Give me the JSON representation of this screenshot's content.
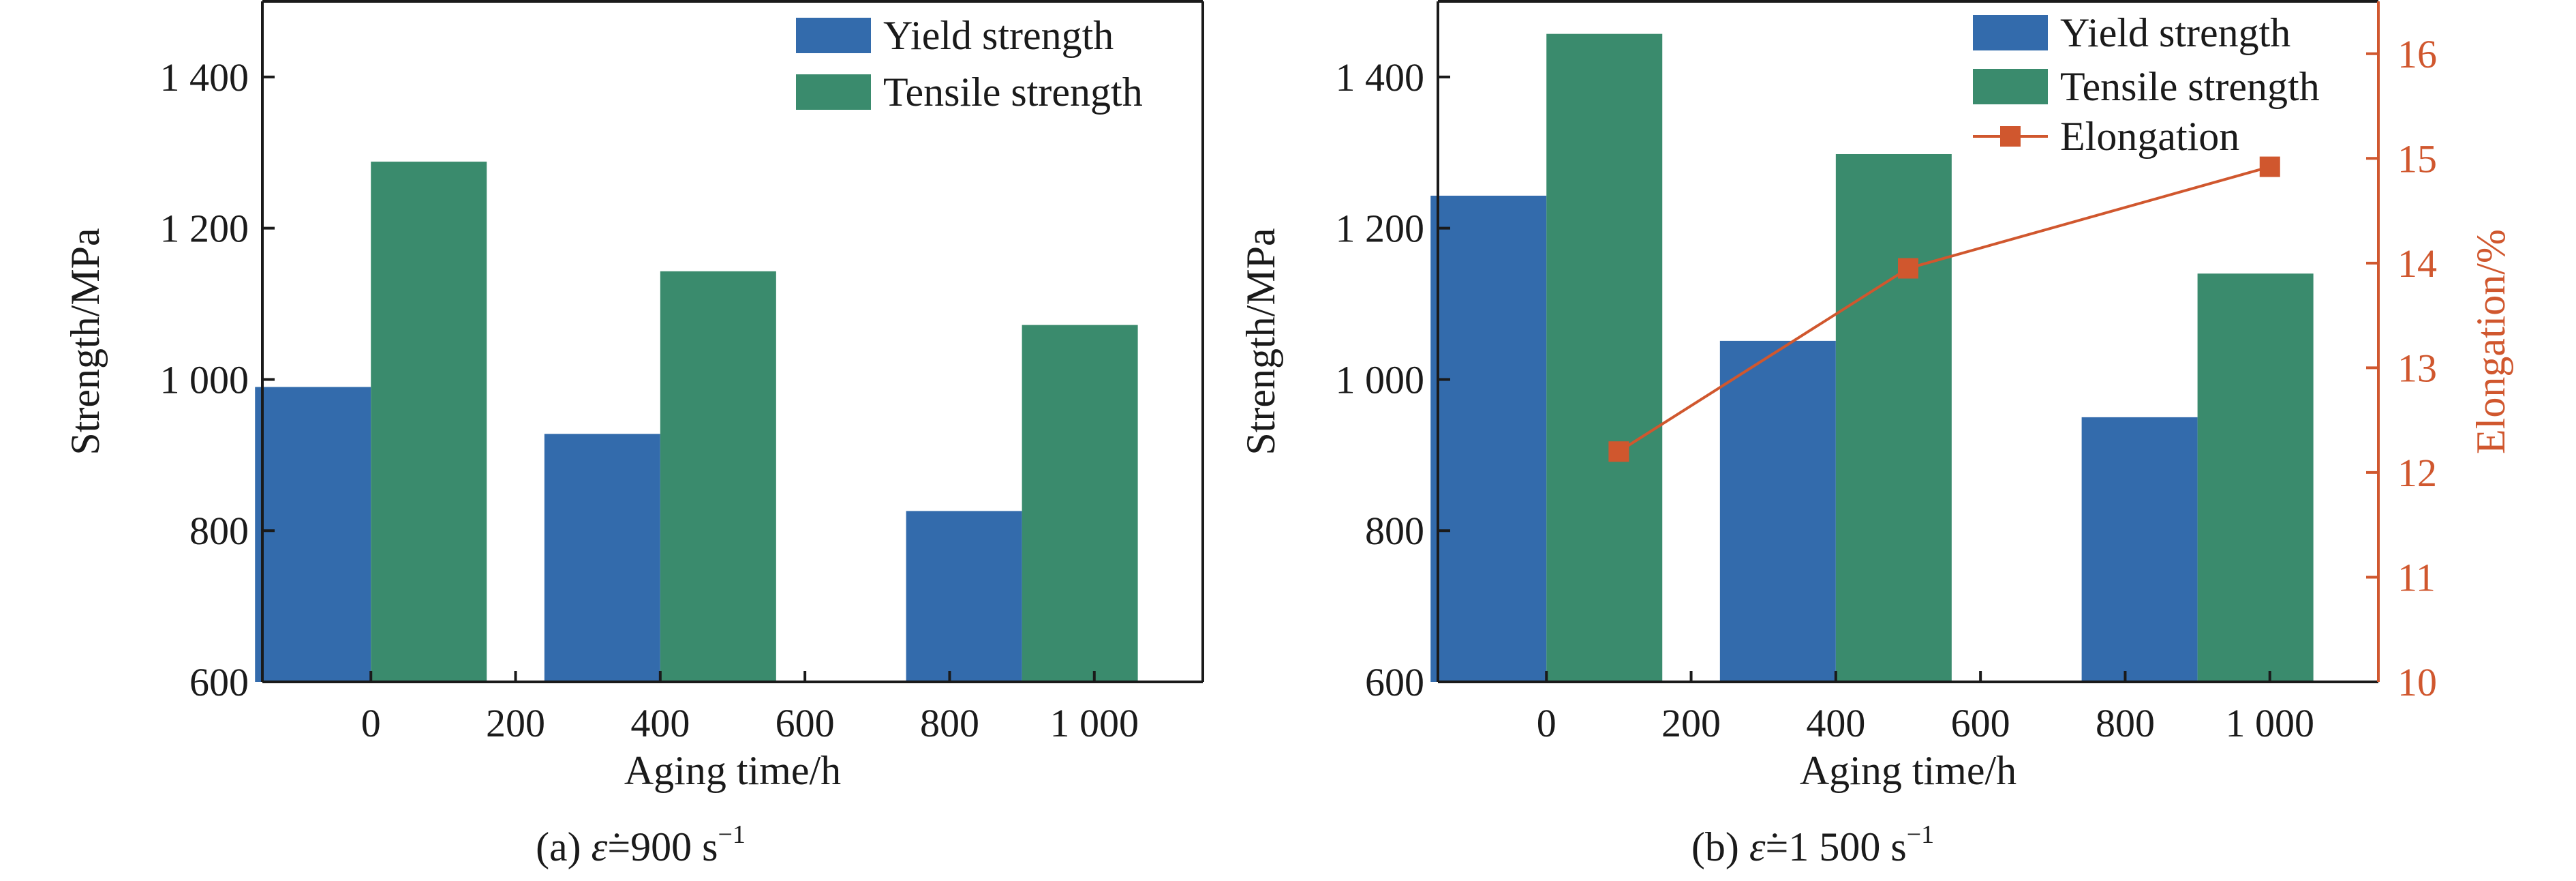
{
  "chart_data": [
    {
      "type": "bar",
      "caption": {
        "prefix": "(a) ",
        "symbol": "ε",
        "value": "=900 s",
        "exponent": "−1"
      },
      "xlabel": "Aging time/h",
      "ylabel": "Strength/MPa",
      "ylim": [
        600,
        1500
      ],
      "yticks": [
        600,
        800,
        1000,
        1200,
        1400
      ],
      "ytick_labels": [
        "600",
        "800",
        "1 000",
        "1 200",
        "1 400"
      ],
      "xlim": [
        -150,
        1150
      ],
      "xticks": [
        0,
        200,
        400,
        600,
        800,
        1000
      ],
      "xtick_labels": [
        "0",
        "200",
        "400",
        "600",
        "800",
        "1 000"
      ],
      "categories": [
        0,
        400,
        900
      ],
      "legend_position": "top-right",
      "series": [
        {
          "name": "Yield strength",
          "color": "#336bac",
          "values": [
            990,
            928,
            826
          ]
        },
        {
          "name": "Tensile strength",
          "color": "#3a8b6d",
          "values": [
            1288,
            1143,
            1072
          ]
        }
      ]
    },
    {
      "type": "bar",
      "caption": {
        "prefix": "(b) ",
        "symbol": "ε",
        "value": "=1 500 s",
        "exponent": "−1"
      },
      "xlabel": "Aging time/h",
      "ylabel": "Strength/MPa",
      "y2label": "Elongation/%",
      "ylim": [
        600,
        1500
      ],
      "yticks": [
        600,
        800,
        1000,
        1200,
        1400
      ],
      "ytick_labels": [
        "600",
        "800",
        "1 000",
        "1 200",
        "1 400"
      ],
      "y2lim": [
        10,
        16.5
      ],
      "y2ticks": [
        10,
        11,
        12,
        13,
        14,
        15,
        16
      ],
      "y2tick_labels": [
        "10",
        "11",
        "12",
        "13",
        "14",
        "15",
        "16"
      ],
      "xlim": [
        -150,
        1150
      ],
      "xticks": [
        0,
        200,
        400,
        600,
        800,
        1000
      ],
      "xtick_labels": [
        "0",
        "200",
        "400",
        "600",
        "800",
        "1 000"
      ],
      "categories": [
        0,
        400,
        900
      ],
      "legend_position": "top-right",
      "series": [
        {
          "name": "Yield strength",
          "color": "#336bac",
          "values": [
            1243,
            1051,
            950
          ]
        },
        {
          "name": "Tensile strength",
          "color": "#3a8b6d",
          "values": [
            1457,
            1298,
            1140
          ]
        }
      ],
      "line_series": {
        "name": "Elongation",
        "color": "#d0572e",
        "axis": "right",
        "x": [
          100,
          500,
          1000
        ],
        "values": [
          12.2,
          13.95,
          14.92
        ]
      }
    }
  ]
}
